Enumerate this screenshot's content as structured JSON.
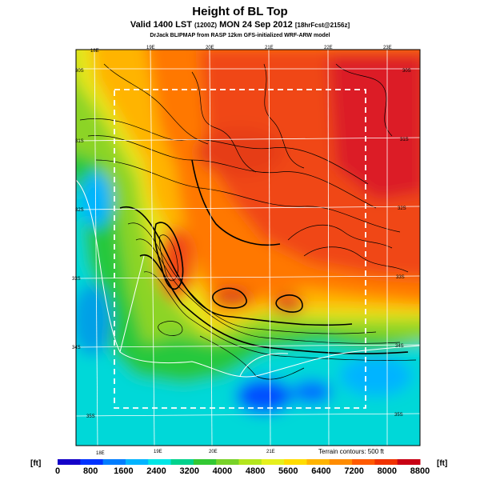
{
  "header": {
    "title": "Height of BL Top",
    "subtitle_main": "Valid 1400 LST",
    "subtitle_small1": "(1200Z)",
    "subtitle_date": "MON 24 Sep 2012",
    "subtitle_small2": "[18hrFcst@2156z]",
    "credit": "DrJack BLIPMAP from RASP 12km GFS-initialized WRF-ARW model"
  },
  "map": {
    "lon_ticks_top": [
      "18E",
      "19E",
      "20E",
      "21E",
      "22E",
      "23E"
    ],
    "lon_ticks_bottom": [
      "18E",
      "19E",
      "20E",
      "21E"
    ],
    "lat_ticks_left": [
      "30S",
      "31S",
      "32S",
      "33S",
      "34S",
      "35S"
    ],
    "lat_ticks_right": [
      "30S",
      "31S",
      "32S",
      "33S",
      "34S",
      "35S"
    ],
    "terrain_note": "Terrain contours: 500 ft"
  },
  "colorbar": {
    "unit_left": "[ft]",
    "unit_right": "[ft]",
    "labels": [
      "0",
      "800",
      "1600",
      "2400",
      "3200",
      "4000",
      "4800",
      "5600",
      "6400",
      "7200",
      "8000",
      "8800"
    ],
    "colors": [
      "#1400c8",
      "#0032ff",
      "#007dff",
      "#00b4ff",
      "#00e6e6",
      "#00d28c",
      "#32c832",
      "#78d228",
      "#b4e61e",
      "#e6f01e",
      "#ffdc00",
      "#ffb400",
      "#ff8c00",
      "#ff5a00",
      "#f03200",
      "#c80014"
    ]
  }
}
